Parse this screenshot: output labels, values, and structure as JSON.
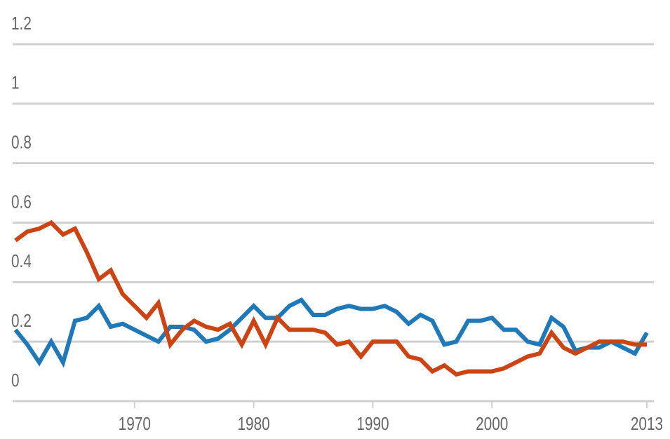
{
  "chart_data": {
    "type": "line",
    "x": [
      1960,
      1961,
      1962,
      1963,
      1964,
      1965,
      1966,
      1967,
      1968,
      1969,
      1970,
      1971,
      1972,
      1973,
      1974,
      1975,
      1976,
      1977,
      1978,
      1979,
      1980,
      1981,
      1982,
      1983,
      1984,
      1985,
      1986,
      1987,
      1988,
      1989,
      1990,
      1991,
      1992,
      1993,
      1994,
      1995,
      1996,
      1997,
      1998,
      1999,
      2000,
      2001,
      2002,
      2003,
      2004,
      2005,
      2006,
      2007,
      2008,
      2009,
      2010,
      2011,
      2012,
      2013
    ],
    "series": [
      {
        "color": "#1f78b8",
        "values": [
          0.24,
          0.19,
          0.13,
          0.2,
          0.13,
          0.27,
          0.28,
          0.32,
          0.25,
          0.26,
          0.24,
          0.22,
          0.2,
          0.25,
          0.25,
          0.24,
          0.2,
          0.21,
          0.24,
          0.28,
          0.32,
          0.28,
          0.28,
          0.32,
          0.34,
          0.29,
          0.29,
          0.31,
          0.32,
          0.31,
          0.31,
          0.32,
          0.3,
          0.26,
          0.29,
          0.27,
          0.19,
          0.2,
          0.27,
          0.27,
          0.28,
          0.24,
          0.24,
          0.2,
          0.19,
          0.28,
          0.25,
          0.17,
          0.18,
          0.18,
          0.2,
          0.18,
          0.16,
          0.23
        ]
      },
      {
        "color": "#cc4414",
        "values": [
          0.54,
          0.57,
          0.58,
          0.6,
          0.56,
          0.58,
          0.5,
          0.41,
          0.44,
          0.36,
          0.32,
          0.28,
          0.33,
          0.19,
          0.24,
          0.27,
          0.25,
          0.24,
          0.26,
          0.19,
          0.27,
          0.19,
          0.28,
          0.24,
          0.24,
          0.24,
          0.23,
          0.19,
          0.2,
          0.15,
          0.2,
          0.2,
          0.2,
          0.15,
          0.14,
          0.1,
          0.12,
          0.09,
          0.1,
          0.1,
          0.1,
          0.11,
          0.13,
          0.15,
          0.16,
          0.23,
          0.18,
          0.16,
          0.18,
          0.2,
          0.2,
          0.2,
          0.19,
          0.19
        ]
      }
    ],
    "xlim": [
      1960,
      2013
    ],
    "xticks": [
      1970,
      1980,
      1990,
      2000,
      2013
    ],
    "ylim": [
      0,
      1.2
    ],
    "yticks": [
      0,
      0.2,
      0.4,
      0.6,
      0.8,
      1,
      1.2
    ],
    "grid": true
  }
}
